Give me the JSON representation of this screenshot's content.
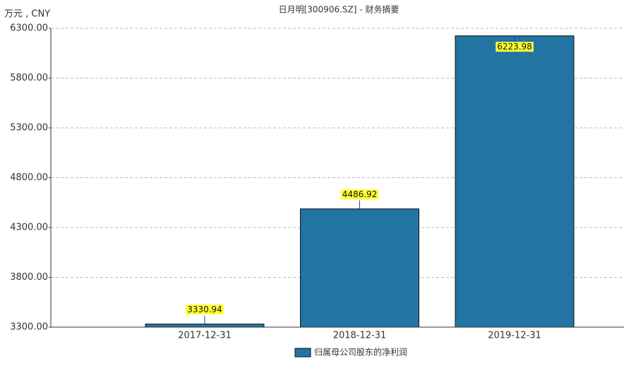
{
  "chart_data": {
    "type": "bar",
    "title": "日月明[300906.SZ] - 财务摘要",
    "y_label": "万元 , CNY",
    "categories": [
      "2017-12-31",
      "2018-12-31",
      "2019-12-31"
    ],
    "series": [
      {
        "name": "归属母公司股东的净利润",
        "color": "#2275a3",
        "values": [
          3330.94,
          4486.92,
          6223.98
        ]
      }
    ],
    "ylim": [
      3300,
      6300
    ],
    "yticks": [
      {
        "value": 3300,
        "label": "3300.00"
      },
      {
        "value": 3800,
        "label": "3800.00"
      },
      {
        "value": 4300,
        "label": "4300.00"
      },
      {
        "value": 4800,
        "label": "4800.00"
      },
      {
        "value": 5300,
        "label": "5300.00"
      },
      {
        "value": 5800,
        "label": "5800.00"
      },
      {
        "value": 6300,
        "label": "6300.00"
      }
    ],
    "grid": true
  }
}
